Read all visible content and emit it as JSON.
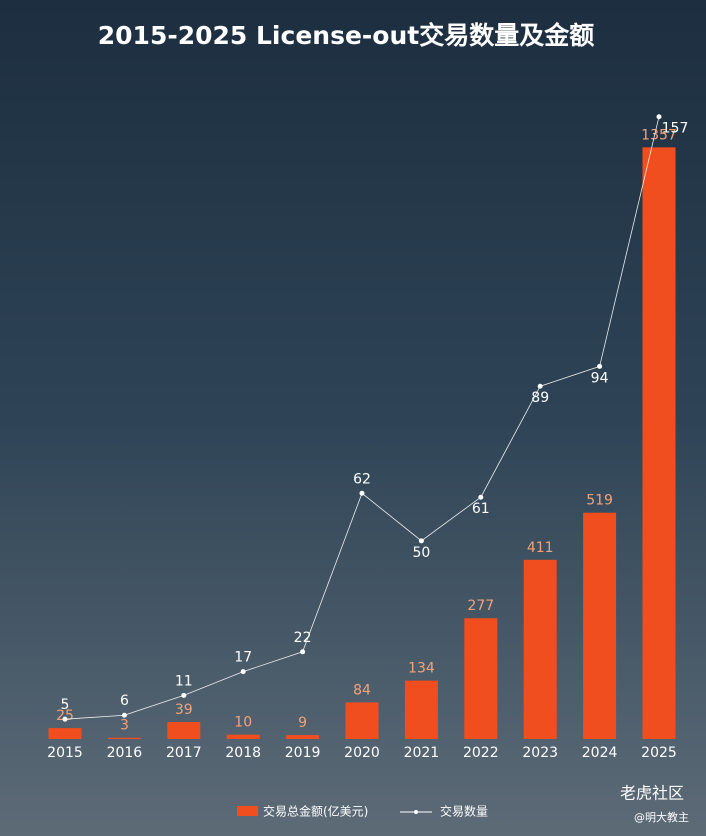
{
  "chart_data": {
    "type": "bar-line",
    "title": "2015-2025 License-out交易数量及金额",
    "categories": [
      "2015",
      "2016",
      "2017",
      "2018",
      "2019",
      "2020",
      "2021",
      "2022",
      "2023",
      "2024",
      "2025"
    ],
    "series": [
      {
        "name": "交易总金额(亿美元)",
        "color": "#f04e1f",
        "label_color": "#f5a27a",
        "values": [
          25,
          3,
          39,
          10,
          9,
          84,
          134,
          277,
          411,
          519,
          1357
        ]
      },
      {
        "name": "交易数量",
        "color": "#ffffff",
        "axis": "y2",
        "values": [
          5,
          6,
          11,
          17,
          22,
          62,
          50,
          61,
          89,
          94,
          157
        ]
      }
    ],
    "ylim": [
      0,
      1500
    ],
    "y2lim": [
      0,
      165
    ]
  },
  "watermark": {
    "site": "老虎社区",
    "author": "@明大教主"
  }
}
